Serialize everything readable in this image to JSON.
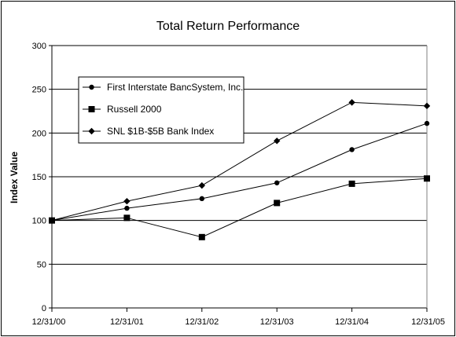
{
  "chart_data": {
    "type": "line",
    "title": "Total Return Performance",
    "xlabel": "",
    "ylabel": "Index Value",
    "categories": [
      "12/31/00",
      "12/31/01",
      "12/31/02",
      "12/31/03",
      "12/31/04",
      "12/31/05"
    ],
    "ylim": [
      0,
      300
    ],
    "yticks": [
      "0",
      "50",
      "100",
      "150",
      "200",
      "250",
      "300"
    ],
    "grid": true,
    "legend_position": "top-left",
    "series": [
      {
        "name": "First Interstate BancSystem, Inc.",
        "marker": "circle",
        "values": [
          100,
          114,
          125,
          143,
          181,
          211
        ]
      },
      {
        "name": "Russell 2000",
        "marker": "square",
        "values": [
          100,
          103,
          81,
          120,
          142,
          148
        ]
      },
      {
        "name": "SNL $1B-$5B Bank Index",
        "marker": "diamond",
        "values": [
          100,
          122,
          140,
          191,
          235,
          231
        ]
      }
    ]
  }
}
